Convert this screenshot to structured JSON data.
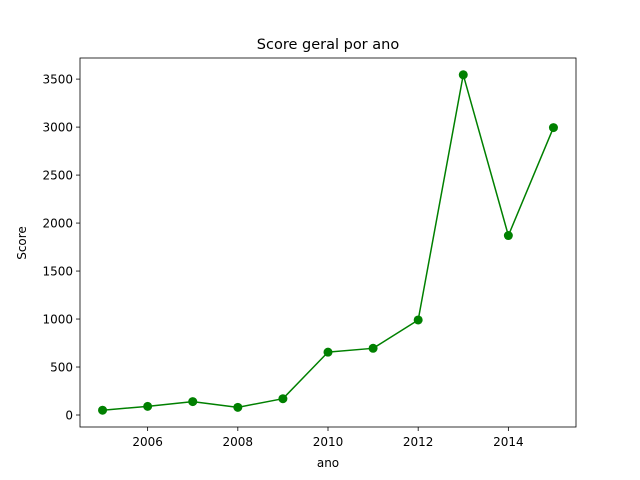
{
  "chart_data": {
    "type": "line",
    "title": "Score geral por ano",
    "xlabel": "ano",
    "ylabel": "Score",
    "x": [
      2005,
      2006,
      2007,
      2008,
      2009,
      2010,
      2011,
      2012,
      2013,
      2014,
      2015
    ],
    "series": [
      {
        "values": [
          50,
          90,
          140,
          80,
          170,
          655,
          695,
          990,
          3545,
          1870,
          2995
        ],
        "color": "#008000",
        "marker": "circle"
      }
    ],
    "xlim": [
      2004.5,
      2015.5
    ],
    "ylim": [
      -125,
      3720
    ],
    "xticks": [
      2006,
      2008,
      2010,
      2012,
      2014
    ],
    "yticks": [
      0,
      500,
      1000,
      1500,
      2000,
      2500,
      3000,
      3500
    ],
    "grid": false,
    "legend": "none"
  }
}
